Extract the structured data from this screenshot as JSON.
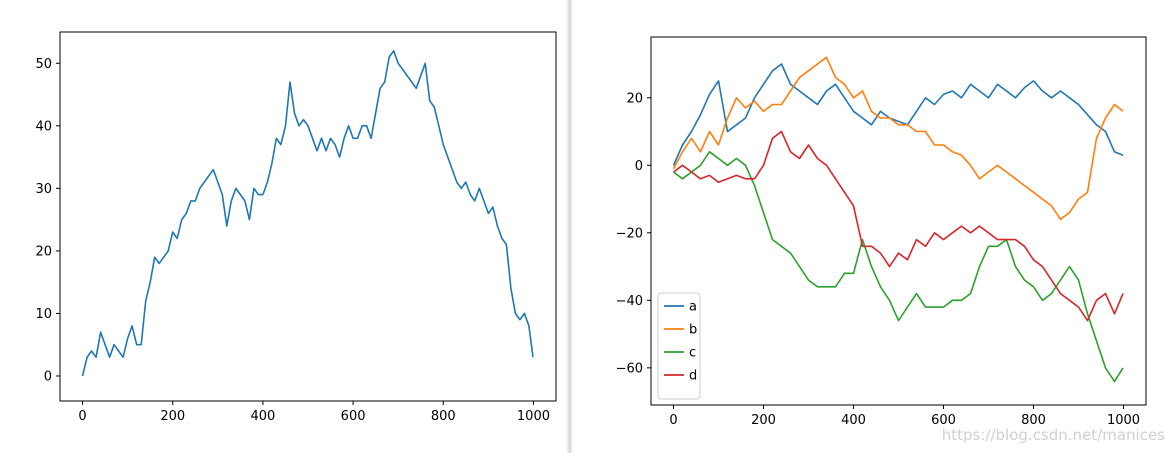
{
  "chart_data": [
    {
      "type": "line",
      "title": "",
      "xlabel": "",
      "ylabel": "",
      "xlim": [
        -50,
        1050
      ],
      "ylim": [
        -4,
        55
      ],
      "xticks": [
        0,
        200,
        400,
        600,
        800,
        1000
      ],
      "yticks": [
        0,
        10,
        20,
        30,
        40,
        50
      ],
      "grid": false,
      "series": [
        {
          "color": "#1f77b4",
          "x": [
            0,
            10,
            20,
            30,
            40,
            50,
            60,
            70,
            80,
            90,
            100,
            110,
            120,
            130,
            140,
            150,
            160,
            170,
            180,
            190,
            200,
            210,
            220,
            230,
            240,
            250,
            260,
            270,
            280,
            290,
            300,
            310,
            320,
            330,
            340,
            350,
            360,
            370,
            380,
            390,
            400,
            410,
            420,
            430,
            440,
            450,
            460,
            470,
            480,
            490,
            500,
            510,
            520,
            530,
            540,
            550,
            560,
            570,
            580,
            590,
            600,
            610,
            620,
            630,
            640,
            650,
            660,
            670,
            680,
            690,
            700,
            710,
            720,
            730,
            740,
            750,
            760,
            770,
            780,
            790,
            800,
            810,
            820,
            830,
            840,
            850,
            860,
            870,
            880,
            890,
            900,
            910,
            920,
            930,
            940,
            950,
            960,
            970,
            980,
            990,
            999
          ],
          "y": [
            0,
            3,
            4,
            3,
            7,
            5,
            3,
            5,
            4,
            3,
            6,
            8,
            5,
            5,
            12,
            15,
            19,
            18,
            19,
            20,
            23,
            22,
            25,
            26,
            28,
            28,
            30,
            31,
            32,
            33,
            31,
            29,
            24,
            28,
            30,
            29,
            28,
            25,
            30,
            29,
            29,
            31,
            34,
            38,
            37,
            40,
            47,
            42,
            40,
            41,
            40,
            38,
            36,
            38,
            36,
            38,
            37,
            35,
            38,
            40,
            38,
            38,
            40,
            40,
            38,
            42,
            46,
            47,
            51,
            52,
            50,
            49,
            48,
            47,
            46,
            48,
            50,
            44,
            43,
            40,
            37,
            35,
            33,
            31,
            30,
            31,
            29,
            28,
            30,
            28,
            26,
            27,
            24,
            22,
            21,
            14,
            10,
            9,
            10,
            8,
            3
          ]
        }
      ]
    },
    {
      "type": "line",
      "title": "",
      "xlabel": "",
      "ylabel": "",
      "xlim": [
        -50,
        1050
      ],
      "ylim": [
        -71,
        38
      ],
      "xticks": [
        0,
        200,
        400,
        600,
        800,
        1000
      ],
      "yticks": [
        -60,
        -40,
        -20,
        0,
        20
      ],
      "grid": false,
      "legend_position": "lower-left",
      "series": [
        {
          "name": "a",
          "color": "#1f77b4",
          "x": [
            0,
            20,
            40,
            60,
            80,
            100,
            120,
            140,
            160,
            180,
            200,
            220,
            240,
            260,
            280,
            300,
            320,
            340,
            360,
            380,
            400,
            420,
            440,
            460,
            480,
            500,
            520,
            540,
            560,
            580,
            600,
            620,
            640,
            660,
            680,
            700,
            720,
            740,
            760,
            780,
            800,
            820,
            840,
            860,
            880,
            900,
            920,
            940,
            960,
            980,
            999
          ],
          "y": [
            0,
            6,
            10,
            15,
            21,
            25,
            10,
            12,
            14,
            20,
            24,
            28,
            30,
            24,
            22,
            20,
            18,
            22,
            24,
            20,
            16,
            14,
            12,
            16,
            14,
            13,
            12,
            16,
            20,
            18,
            21,
            22,
            20,
            24,
            22,
            20,
            24,
            22,
            20,
            23,
            25,
            22,
            20,
            22,
            20,
            18,
            15,
            12,
            10,
            4,
            3
          ]
        },
        {
          "name": "b",
          "color": "#ff7f0e",
          "x": [
            0,
            20,
            40,
            60,
            80,
            100,
            120,
            140,
            160,
            180,
            200,
            220,
            240,
            260,
            280,
            300,
            320,
            340,
            360,
            380,
            400,
            420,
            440,
            460,
            480,
            500,
            520,
            540,
            560,
            580,
            600,
            620,
            640,
            660,
            680,
            700,
            720,
            740,
            760,
            780,
            800,
            820,
            840,
            860,
            880,
            900,
            920,
            940,
            960,
            980,
            999
          ],
          "y": [
            -1,
            4,
            8,
            4,
            10,
            6,
            14,
            20,
            17,
            19,
            16,
            18,
            18,
            22,
            26,
            28,
            30,
            32,
            26,
            24,
            20,
            22,
            16,
            14,
            14,
            12,
            12,
            10,
            10,
            6,
            6,
            4,
            3,
            0,
            -4,
            -2,
            0,
            -2,
            -4,
            -6,
            -8,
            -10,
            -12,
            -16,
            -14,
            -10,
            -8,
            8,
            14,
            18,
            16
          ]
        },
        {
          "name": "c",
          "color": "#2ca02c",
          "x": [
            0,
            20,
            40,
            60,
            80,
            100,
            120,
            140,
            160,
            180,
            200,
            220,
            240,
            260,
            280,
            300,
            320,
            340,
            360,
            380,
            400,
            420,
            440,
            460,
            480,
            500,
            520,
            540,
            560,
            580,
            600,
            620,
            640,
            660,
            680,
            700,
            720,
            740,
            760,
            780,
            800,
            820,
            840,
            860,
            880,
            900,
            920,
            940,
            960,
            980,
            999
          ],
          "y": [
            -2,
            -4,
            -2,
            0,
            4,
            2,
            0,
            2,
            0,
            -6,
            -14,
            -22,
            -24,
            -26,
            -30,
            -34,
            -36,
            -36,
            -36,
            -32,
            -32,
            -22,
            -30,
            -36,
            -40,
            -46,
            -42,
            -38,
            -42,
            -42,
            -42,
            -40,
            -40,
            -38,
            -30,
            -24,
            -24,
            -22,
            -30,
            -34,
            -36,
            -40,
            -38,
            -34,
            -30,
            -34,
            -44,
            -52,
            -60,
            -64,
            -60
          ]
        },
        {
          "name": "d",
          "color": "#d62728",
          "x": [
            0,
            20,
            40,
            60,
            80,
            100,
            120,
            140,
            160,
            180,
            200,
            220,
            240,
            260,
            280,
            300,
            320,
            340,
            360,
            380,
            400,
            420,
            440,
            460,
            480,
            500,
            520,
            540,
            560,
            580,
            600,
            620,
            640,
            660,
            680,
            700,
            720,
            740,
            760,
            780,
            800,
            820,
            840,
            860,
            880,
            900,
            920,
            940,
            960,
            980,
            999
          ],
          "y": [
            -2,
            0,
            -2,
            -4,
            -3,
            -5,
            -4,
            -3,
            -4,
            -4,
            0,
            8,
            10,
            4,
            2,
            6,
            2,
            0,
            -4,
            -8,
            -12,
            -24,
            -24,
            -26,
            -30,
            -26,
            -28,
            -22,
            -24,
            -20,
            -22,
            -20,
            -18,
            -20,
            -18,
            -20,
            -22,
            -22,
            -22,
            -24,
            -28,
            -30,
            -34,
            -38,
            -40,
            -42,
            -46,
            -40,
            -38,
            -44,
            -38
          ]
        }
      ]
    }
  ],
  "watermark": "https://blog.csdn.net/manices"
}
